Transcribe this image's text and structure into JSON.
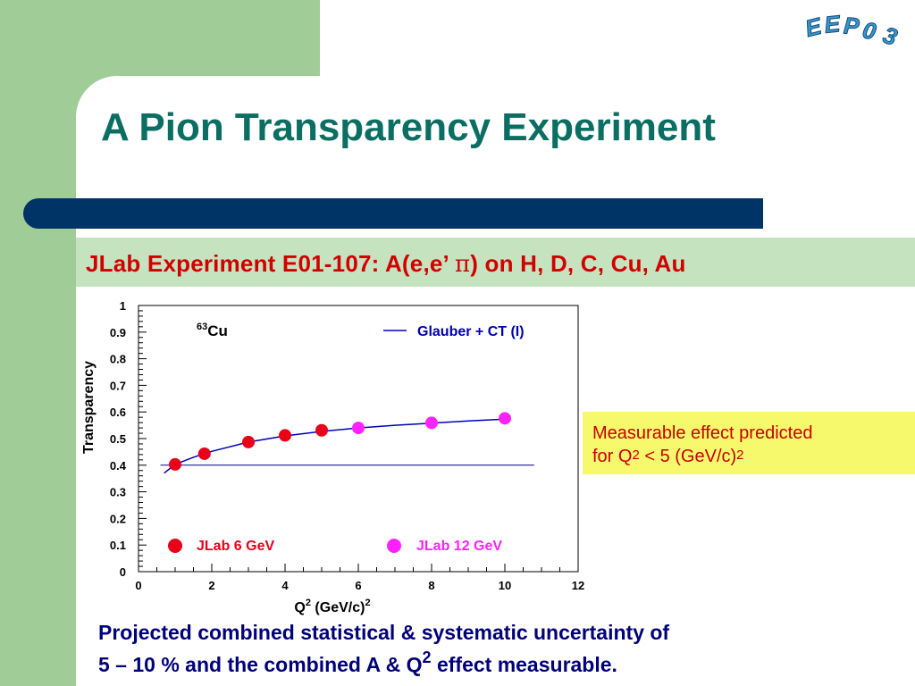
{
  "logo_text": "EEP03",
  "title": "A Pion Transparency  Experiment",
  "subtitle": {
    "prefix": "JLab  Experiment  E01-107:  A(e,e’ ",
    "pi_symbol": "π",
    "suffix": ") on H, D, C, Cu, Au"
  },
  "chart_data": {
    "type": "scatter",
    "xlabel_base": "Q",
    "xlabel_sup": "2",
    "xlabel_units": " (GeV/c)",
    "xlabel_units_sup": "2",
    "ylabel": "Transparency",
    "xlim": [
      0,
      12
    ],
    "ylim": [
      0,
      1
    ],
    "x_ticks": [
      "0",
      "2",
      "4",
      "6",
      "8",
      "10",
      "12"
    ],
    "y_ticks": [
      "0",
      "0.1",
      "0.2",
      "0.3",
      "0.4",
      "0.5",
      "0.6",
      "0.7",
      "0.8",
      "0.9",
      "1"
    ],
    "nucleus_mass": "63",
    "nucleus_symbol": "Cu",
    "series": [
      {
        "name": "JLab 6 GeV",
        "color": "#e8001a",
        "points": [
          [
            1.0,
            0.403
          ],
          [
            1.8,
            0.443
          ],
          [
            3.0,
            0.487
          ],
          [
            4.0,
            0.512
          ],
          [
            5.0,
            0.531
          ]
        ],
        "yerr": 0.022
      },
      {
        "name": "JLab 12 GeV",
        "color": "#ff22ff",
        "points": [
          [
            6.0,
            0.54
          ],
          [
            8.0,
            0.559
          ],
          [
            10.0,
            0.576
          ]
        ],
        "yerr": 0.022
      }
    ],
    "curve": {
      "name": "Glauber + CT (I)",
      "color": "#0000b4",
      "points": [
        [
          0.7,
          0.37
        ],
        [
          1.0,
          0.403
        ],
        [
          1.5,
          0.43
        ],
        [
          2.0,
          0.452
        ],
        [
          3.0,
          0.487
        ],
        [
          4.0,
          0.51
        ],
        [
          5.0,
          0.527
        ],
        [
          6.0,
          0.54
        ],
        [
          7.0,
          0.55
        ],
        [
          8.0,
          0.558
        ],
        [
          9.0,
          0.566
        ],
        [
          10.0,
          0.573
        ]
      ]
    },
    "reference_line": {
      "y": 0.4,
      "x_from": 0.6,
      "x_to": 10.8,
      "color": "#000080"
    }
  },
  "callout": {
    "line1": "Measurable effect predicted",
    "line2_a": "for Q",
    "line2_sup": "2",
    "line2_b": " <  5 (GeV/c)",
    "line2_sup2": "2"
  },
  "conclusion": {
    "line1": "Projected combined statistical & systematic uncertainty of",
    "line2_a": "5 – 10 % and the combined A & Q",
    "line2_sup": "2",
    "line2_b": " effect measurable."
  },
  "colors": {
    "green": "#a0cc98",
    "navy": "#003366",
    "title": "#0a6e62",
    "subtitle": "#d10000",
    "callout_bg": "#f7f96c",
    "conclusion": "#00007a"
  }
}
